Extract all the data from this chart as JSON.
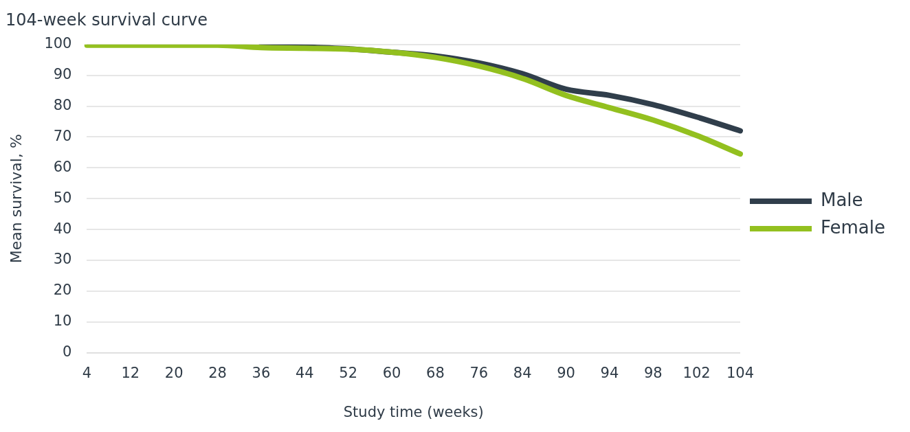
{
  "chart_data": {
    "type": "line",
    "title": "104-week survival curve",
    "xlabel": "Study time (weeks)",
    "ylabel": "Mean survival, %",
    "categories": [
      "4",
      "12",
      "20",
      "28",
      "36",
      "44",
      "52",
      "60",
      "68",
      "76",
      "84",
      "90",
      "94",
      "98",
      "102",
      "104"
    ],
    "series": [
      {
        "name": "Male",
        "color": "#303e4b",
        "values": [
          null,
          null,
          null,
          null,
          99.5,
          99.2,
          98.6,
          97.5,
          96.3,
          94,
          90.5,
          85.5,
          83.5,
          80.5,
          76.5,
          72
        ]
      },
      {
        "name": "Female",
        "color": "#93c01f",
        "values": [
          99.8,
          99.8,
          99.8,
          99.8,
          99.0,
          98.8,
          98.5,
          97.5,
          95.8,
          93,
          89,
          83.5,
          79.5,
          75.5,
          70.5,
          64.5
        ]
      }
    ],
    "ylim": [
      0,
      100
    ],
    "yticks": [
      0,
      10,
      20,
      30,
      40,
      50,
      60,
      70,
      80,
      90,
      100
    ],
    "grid": "y",
    "legend": "right",
    "marker": "none",
    "line_style": "solid"
  }
}
